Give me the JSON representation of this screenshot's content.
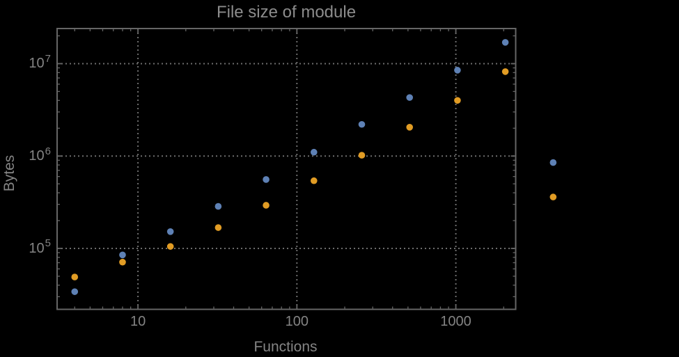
{
  "title": "File size of module",
  "axes": {
    "x_label": "Functions",
    "y_label": "Bytes"
  },
  "colors": {
    "background": "#000000",
    "frame": "#666666",
    "grid": "#6e6e6e",
    "title_text": "#8c8c8c",
    "tick_text": "#848484",
    "series1": "#5e81b5",
    "series2": "#e19c24"
  },
  "chart_data": {
    "type": "scatter",
    "title": "File size of module",
    "xlabel": "Functions",
    "ylabel": "Bytes",
    "x_scale": "log10",
    "y_scale": "log10",
    "xlim": [
      3.1,
      2380
    ],
    "ylim": [
      21900,
      24000000
    ],
    "grid": "dotted-at-decades",
    "legend": "none",
    "marker_radius_px": 4.8,
    "x_major_ticks": [
      10,
      100,
      1000
    ],
    "x_tick_labels": [
      "10",
      "100",
      "1000"
    ],
    "y_major_ticks": [
      100000,
      1000000,
      10000000
    ],
    "y_tick_base": "10",
    "y_tick_exponents": [
      "5",
      "6",
      "7"
    ],
    "x": [
      4,
      8,
      16,
      32,
      64,
      128,
      256,
      512,
      1024,
      2048,
      4096
    ],
    "series": [
      {
        "name": "series-1-blue",
        "color": "#5e81b5",
        "values": [
          34000,
          85000,
          152000,
          285000,
          557000,
          1100000,
          2200000,
          4300000,
          8500000,
          17000000,
          850000
        ]
      },
      {
        "name": "series-2-orange",
        "color": "#e19c24",
        "values": [
          49000,
          71000,
          105000,
          168000,
          293000,
          540000,
          1020000,
          2050000,
          4000000,
          8200000,
          360000
        ]
      }
    ]
  }
}
